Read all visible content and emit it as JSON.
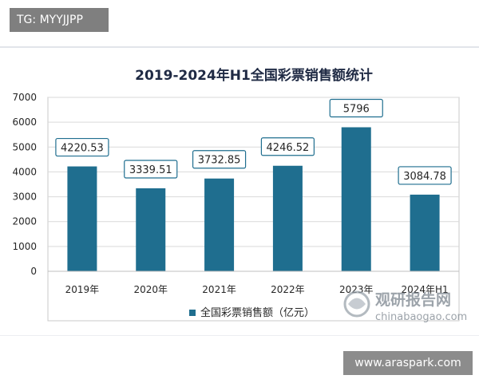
{
  "overlays": {
    "top_left_tag": "TG: MYYJJPP",
    "bottom_right_url": "www.araspark.com"
  },
  "watermark": {
    "cn_text": "观研报告网",
    "url": "chinabaogao.com"
  },
  "colors": {
    "bar": "#1f6e8f",
    "grid": "#d9d9d9",
    "plot_border": "#c8c8c8",
    "label_border": "#1f6e8f",
    "text": "#262626",
    "title": "#1f2a44"
  },
  "chart_data": {
    "type": "bar",
    "title": "2019-2024年H1全国彩票销售额统计",
    "categories": [
      "2019年",
      "2020年",
      "2021年",
      "2022年",
      "2023年",
      "2024年H1"
    ],
    "series": [
      {
        "name": "全国彩票销售额（亿元）",
        "values": [
          4220.53,
          3339.51,
          3732.85,
          4246.52,
          5796,
          3084.78
        ],
        "labels": [
          "4220.53",
          "3339.51",
          "3732.85",
          "4246.52",
          "5796",
          "3084.78"
        ]
      }
    ],
    "ylim": [
      0,
      7000
    ],
    "yticks": [
      "0",
      "1000",
      "2000",
      "3000",
      "4000",
      "5000",
      "6000",
      "7000"
    ],
    "grid": true,
    "legend_position": "bottom-center"
  }
}
